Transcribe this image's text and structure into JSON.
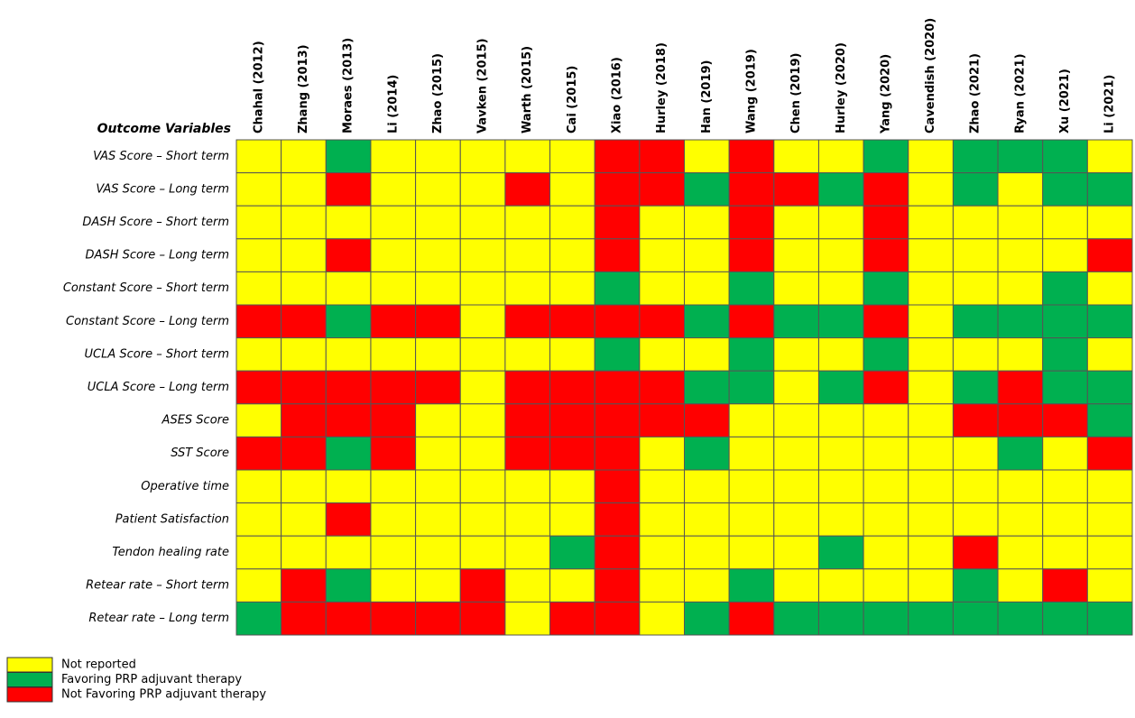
{
  "chart_data": {
    "type": "heatmap",
    "row_header": "Outcome Variables",
    "columns": [
      "Chahal (2012)",
      "Zhang (2013)",
      "Moraes (2013)",
      "Li (2014)",
      "Zhao (2015)",
      "Vavken (2015)",
      "Warth (2015)",
      "Cai (2015)",
      "Xiao (2016)",
      "Hurley (2018)",
      "Han (2019)",
      "Wang (2019)",
      "Chen (2019)",
      "Hurley (2020)",
      "Yang (2020)",
      "Cavendish (2020)",
      "Zhao (2021)",
      "Ryan (2021)",
      "Xu (2021)",
      "Li (2021)"
    ],
    "legend": [
      {
        "label": "Not reported",
        "color": "#ffff00"
      },
      {
        "label": "Favoring PRP adjuvant therapy",
        "color": "#00b050"
      },
      {
        "label": "Not Favoring PRP adjuvant therapy",
        "color": "#ff0000"
      }
    ],
    "rows": [
      {
        "label": "VAS Score – Short term",
        "cells": [
          0,
          0,
          1,
          0,
          0,
          0,
          0,
          0,
          2,
          2,
          0,
          2,
          0,
          0,
          1,
          0,
          1,
          1,
          1,
          0
        ]
      },
      {
        "label": "VAS Score – Long term",
        "cells": [
          0,
          0,
          2,
          0,
          0,
          0,
          2,
          0,
          2,
          2,
          1,
          2,
          2,
          1,
          2,
          0,
          1,
          0,
          1,
          1
        ]
      },
      {
        "label": "DASH Score – Short term",
        "cells": [
          0,
          0,
          0,
          0,
          0,
          0,
          0,
          0,
          2,
          0,
          0,
          2,
          0,
          0,
          2,
          0,
          0,
          0,
          0,
          0
        ]
      },
      {
        "label": "DASH Score – Long term",
        "cells": [
          0,
          0,
          2,
          0,
          0,
          0,
          0,
          0,
          2,
          0,
          0,
          2,
          0,
          0,
          2,
          0,
          0,
          0,
          0,
          2
        ]
      },
      {
        "label": "Constant Score – Short term",
        "cells": [
          0,
          0,
          0,
          0,
          0,
          0,
          0,
          0,
          1,
          0,
          0,
          1,
          0,
          0,
          1,
          0,
          0,
          0,
          1,
          0
        ]
      },
      {
        "label": "Constant Score – Long term",
        "cells": [
          2,
          2,
          1,
          2,
          2,
          0,
          2,
          2,
          2,
          2,
          1,
          2,
          1,
          1,
          2,
          0,
          1,
          1,
          1,
          1
        ]
      },
      {
        "label": "UCLA Score – Short term",
        "cells": [
          0,
          0,
          0,
          0,
          0,
          0,
          0,
          0,
          1,
          0,
          0,
          1,
          0,
          0,
          1,
          0,
          0,
          0,
          1,
          0
        ]
      },
      {
        "label": "UCLA Score – Long term",
        "cells": [
          2,
          2,
          2,
          2,
          2,
          0,
          2,
          2,
          2,
          2,
          1,
          1,
          0,
          1,
          2,
          0,
          1,
          2,
          1,
          1
        ]
      },
      {
        "label": "ASES Score",
        "cells": [
          0,
          2,
          2,
          2,
          0,
          0,
          2,
          2,
          2,
          2,
          2,
          0,
          0,
          0,
          0,
          0,
          2,
          2,
          2,
          1
        ]
      },
      {
        "label": "SST Score",
        "cells": [
          2,
          2,
          1,
          2,
          0,
          0,
          2,
          2,
          2,
          0,
          1,
          0,
          0,
          0,
          0,
          0,
          0,
          1,
          0,
          2
        ]
      },
      {
        "label": "Operative time",
        "cells": [
          0,
          0,
          0,
          0,
          0,
          0,
          0,
          0,
          2,
          0,
          0,
          0,
          0,
          0,
          0,
          0,
          0,
          0,
          0,
          0
        ]
      },
      {
        "label": "Patient Satisfaction",
        "cells": [
          0,
          0,
          2,
          0,
          0,
          0,
          0,
          0,
          2,
          0,
          0,
          0,
          0,
          0,
          0,
          0,
          0,
          0,
          0,
          0
        ]
      },
      {
        "label": "Tendon healing rate",
        "cells": [
          0,
          0,
          0,
          0,
          0,
          0,
          0,
          1,
          2,
          0,
          0,
          0,
          0,
          1,
          0,
          0,
          2,
          0,
          0,
          0
        ]
      },
      {
        "label": "Retear rate – Short term",
        "cells": [
          0,
          2,
          1,
          0,
          0,
          2,
          0,
          0,
          2,
          0,
          0,
          1,
          0,
          0,
          0,
          0,
          1,
          0,
          2,
          0
        ]
      },
      {
        "label": "Retear rate – Long term",
        "cells": [
          1,
          2,
          2,
          2,
          2,
          2,
          0,
          2,
          2,
          0,
          1,
          2,
          1,
          1,
          1,
          1,
          1,
          1,
          1,
          1
        ]
      }
    ]
  }
}
